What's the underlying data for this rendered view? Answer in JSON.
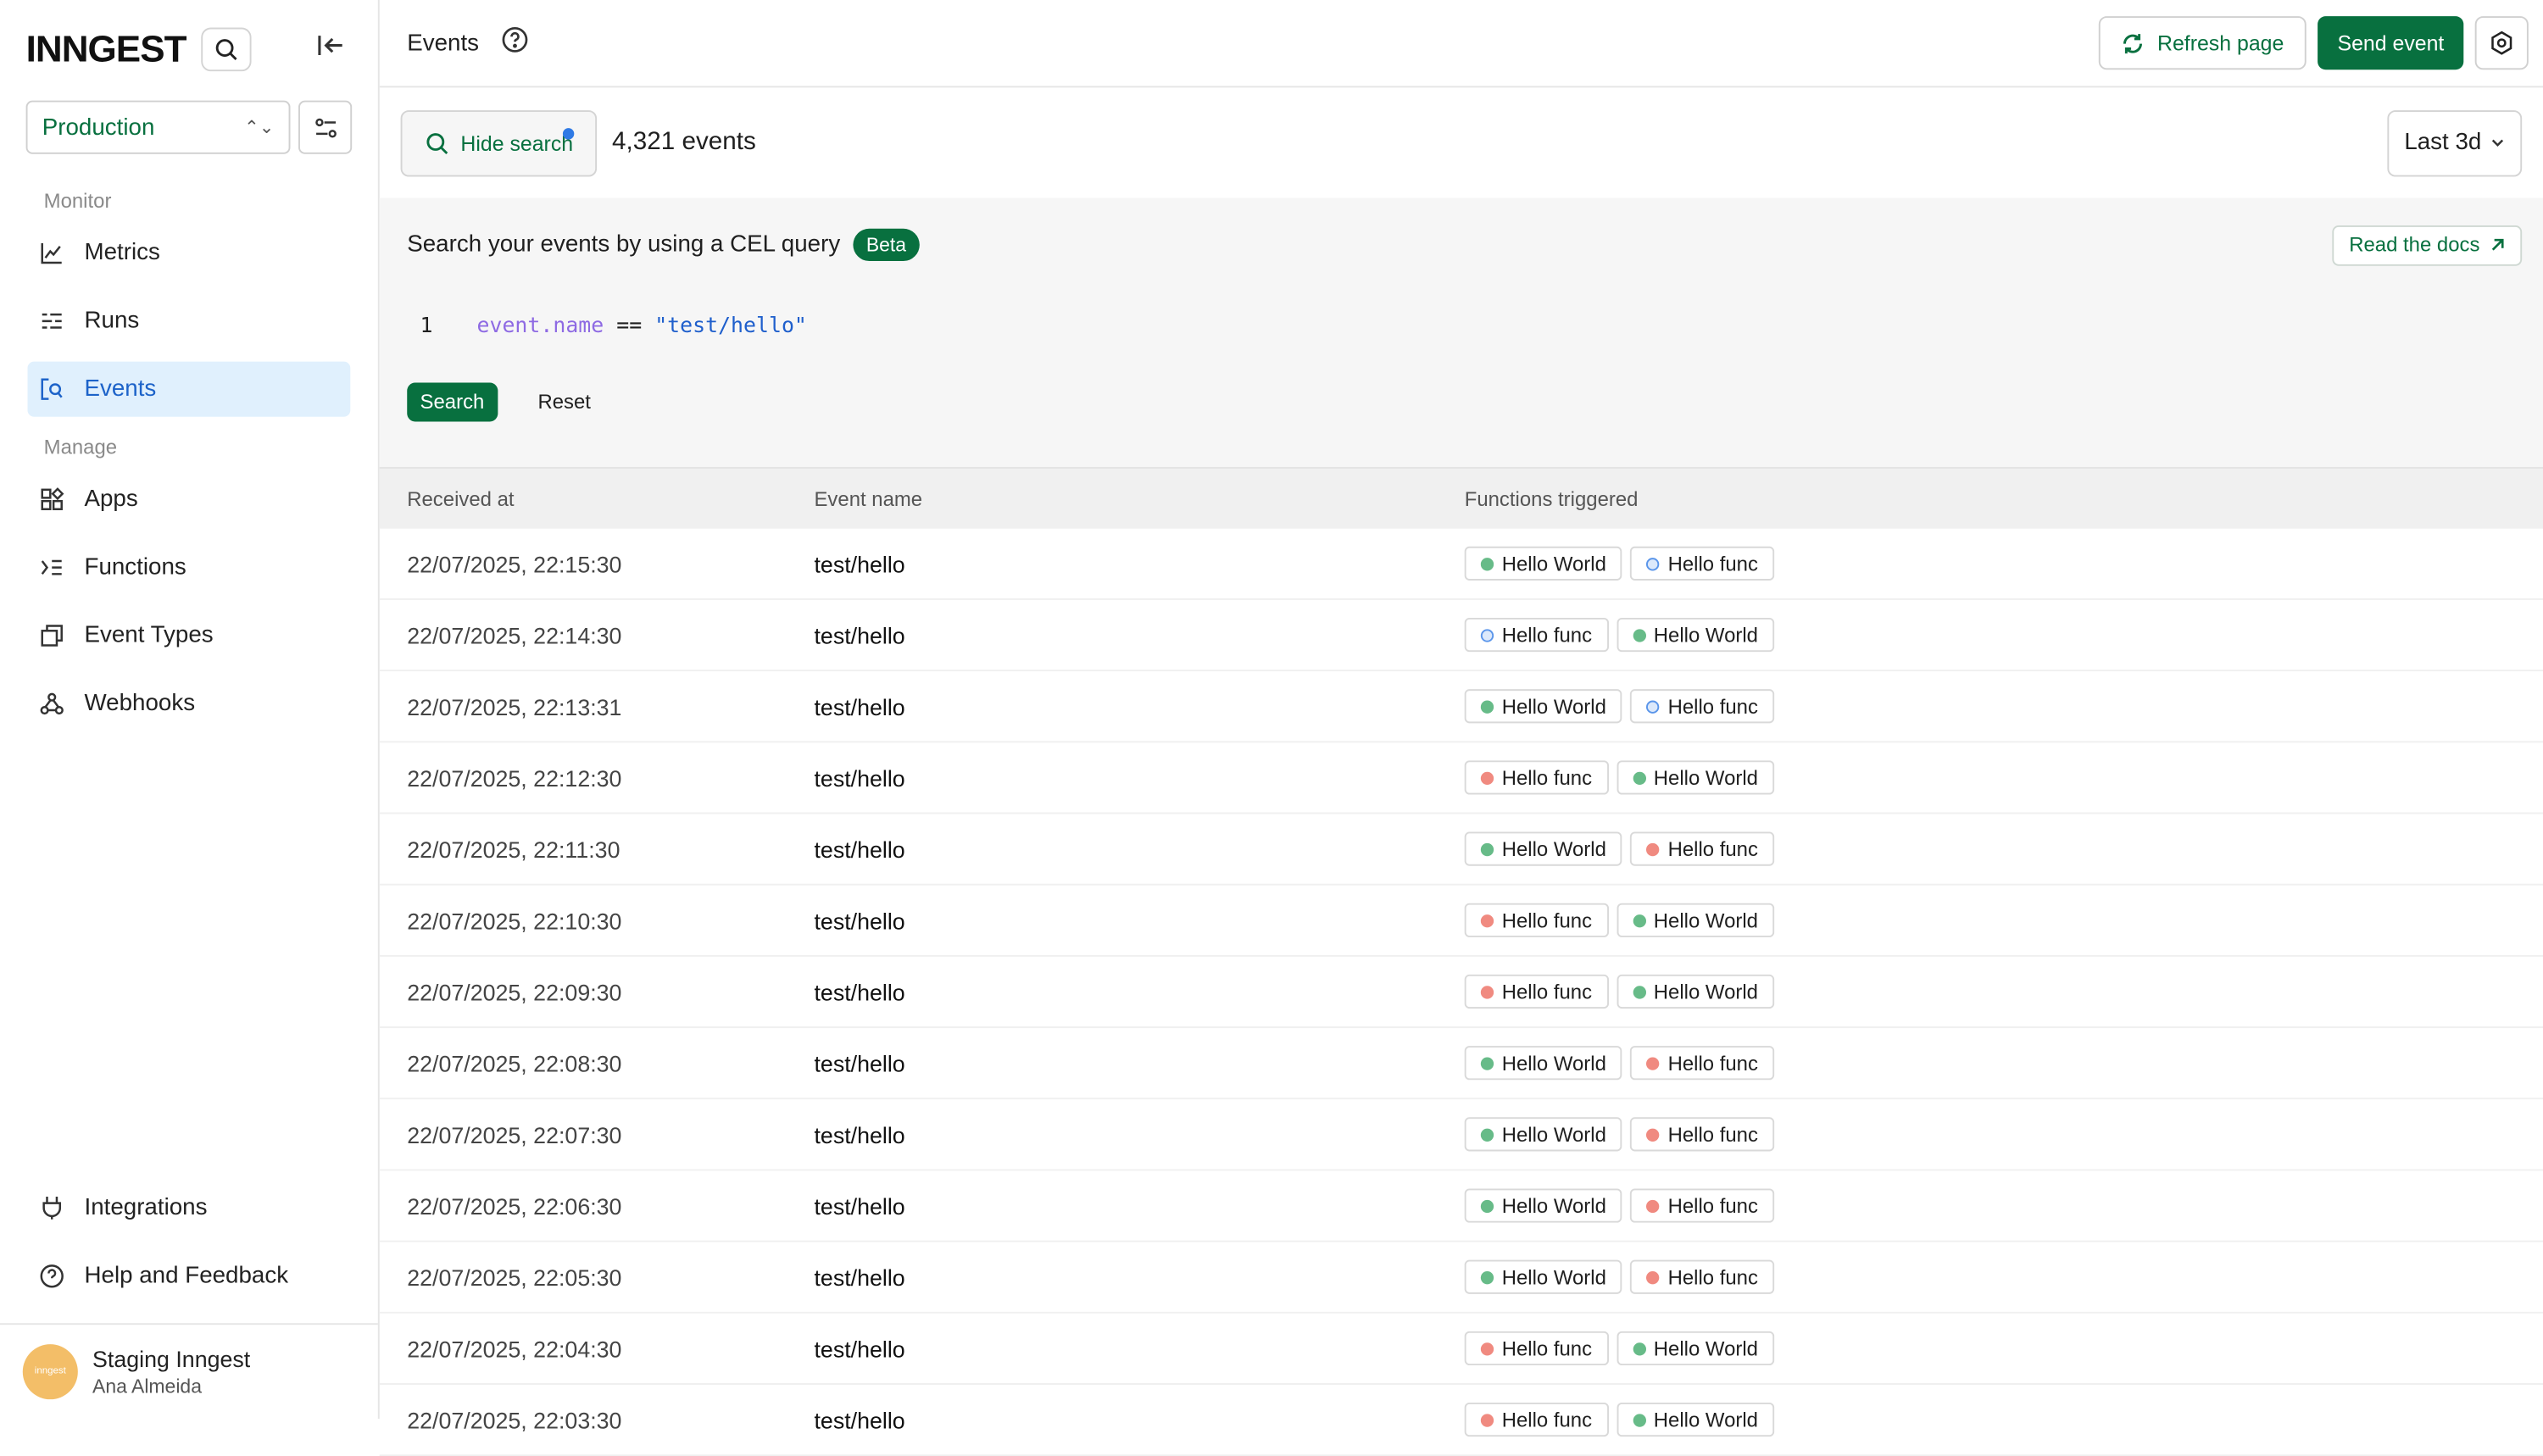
{
  "sidebar": {
    "logo": "INNGEST",
    "environment": "Production",
    "sections": {
      "monitor": "Monitor",
      "manage": "Manage"
    },
    "monitor_items": [
      {
        "label": "Metrics",
        "icon": "chart-line-icon"
      },
      {
        "label": "Runs",
        "icon": "list-icon"
      },
      {
        "label": "Events",
        "icon": "event-search-icon",
        "active": true
      }
    ],
    "manage_items": [
      {
        "label": "Apps",
        "icon": "apps-icon"
      },
      {
        "label": "Functions",
        "icon": "functions-icon"
      },
      {
        "label": "Event Types",
        "icon": "event-types-icon"
      },
      {
        "label": "Webhooks",
        "icon": "webhooks-icon"
      }
    ],
    "bottom_items": [
      {
        "label": "Integrations",
        "icon": "plug-icon"
      },
      {
        "label": "Help and Feedback",
        "icon": "help-icon"
      }
    ],
    "profile": {
      "org": "Staging Inngest",
      "user": "Ana Almeida",
      "avatar_text": "inngest"
    }
  },
  "header": {
    "title": "Events",
    "refresh_label": "Refresh page",
    "send_label": "Send event"
  },
  "filter": {
    "hide_search_label": "Hide search",
    "count": "4,321 events",
    "range": "Last 3d"
  },
  "query": {
    "heading": "Search your events by using a CEL query",
    "badge": "Beta",
    "docs_label": "Read the docs",
    "line_number": "1",
    "code_field": "event.name",
    "code_op": " == ",
    "code_value": "\"test/hello\"",
    "search_label": "Search",
    "reset_label": "Reset"
  },
  "table": {
    "columns": [
      "Received at",
      "Event name",
      "Functions triggered"
    ],
    "rows": [
      {
        "received": "22/07/2025, 22:15:30",
        "name": "test/hello",
        "functions": [
          {
            "name": "Hello World",
            "status": "completed"
          },
          {
            "name": "Hello func",
            "status": "queued"
          }
        ]
      },
      {
        "received": "22/07/2025, 22:14:30",
        "name": "test/hello",
        "functions": [
          {
            "name": "Hello func",
            "status": "queued"
          },
          {
            "name": "Hello World",
            "status": "completed"
          }
        ]
      },
      {
        "received": "22/07/2025, 22:13:31",
        "name": "test/hello",
        "functions": [
          {
            "name": "Hello World",
            "status": "completed"
          },
          {
            "name": "Hello func",
            "status": "queued"
          }
        ]
      },
      {
        "received": "22/07/2025, 22:12:30",
        "name": "test/hello",
        "functions": [
          {
            "name": "Hello func",
            "status": "failed"
          },
          {
            "name": "Hello World",
            "status": "completed"
          }
        ]
      },
      {
        "received": "22/07/2025, 22:11:30",
        "name": "test/hello",
        "functions": [
          {
            "name": "Hello World",
            "status": "completed"
          },
          {
            "name": "Hello func",
            "status": "failed"
          }
        ]
      },
      {
        "received": "22/07/2025, 22:10:30",
        "name": "test/hello",
        "functions": [
          {
            "name": "Hello func",
            "status": "failed"
          },
          {
            "name": "Hello World",
            "status": "completed"
          }
        ]
      },
      {
        "received": "22/07/2025, 22:09:30",
        "name": "test/hello",
        "functions": [
          {
            "name": "Hello func",
            "status": "failed"
          },
          {
            "name": "Hello World",
            "status": "completed"
          }
        ]
      },
      {
        "received": "22/07/2025, 22:08:30",
        "name": "test/hello",
        "functions": [
          {
            "name": "Hello World",
            "status": "completed"
          },
          {
            "name": "Hello func",
            "status": "failed"
          }
        ]
      },
      {
        "received": "22/07/2025, 22:07:30",
        "name": "test/hello",
        "functions": [
          {
            "name": "Hello World",
            "status": "completed"
          },
          {
            "name": "Hello func",
            "status": "failed"
          }
        ]
      },
      {
        "received": "22/07/2025, 22:06:30",
        "name": "test/hello",
        "functions": [
          {
            "name": "Hello World",
            "status": "completed"
          },
          {
            "name": "Hello func",
            "status": "failed"
          }
        ]
      },
      {
        "received": "22/07/2025, 22:05:30",
        "name": "test/hello",
        "functions": [
          {
            "name": "Hello World",
            "status": "completed"
          },
          {
            "name": "Hello func",
            "status": "failed"
          }
        ]
      },
      {
        "received": "22/07/2025, 22:04:30",
        "name": "test/hello",
        "functions": [
          {
            "name": "Hello func",
            "status": "failed"
          },
          {
            "name": "Hello World",
            "status": "completed"
          }
        ]
      },
      {
        "received": "22/07/2025, 22:03:30",
        "name": "test/hello",
        "functions": [
          {
            "name": "Hello func",
            "status": "failed"
          },
          {
            "name": "Hello World",
            "status": "completed"
          }
        ]
      }
    ]
  },
  "colors": {
    "brand": "#08703f",
    "completed": "#67bb88",
    "failed": "#f08a80",
    "queued": "#5a95ea",
    "active_nav": "#e0f0fd"
  }
}
